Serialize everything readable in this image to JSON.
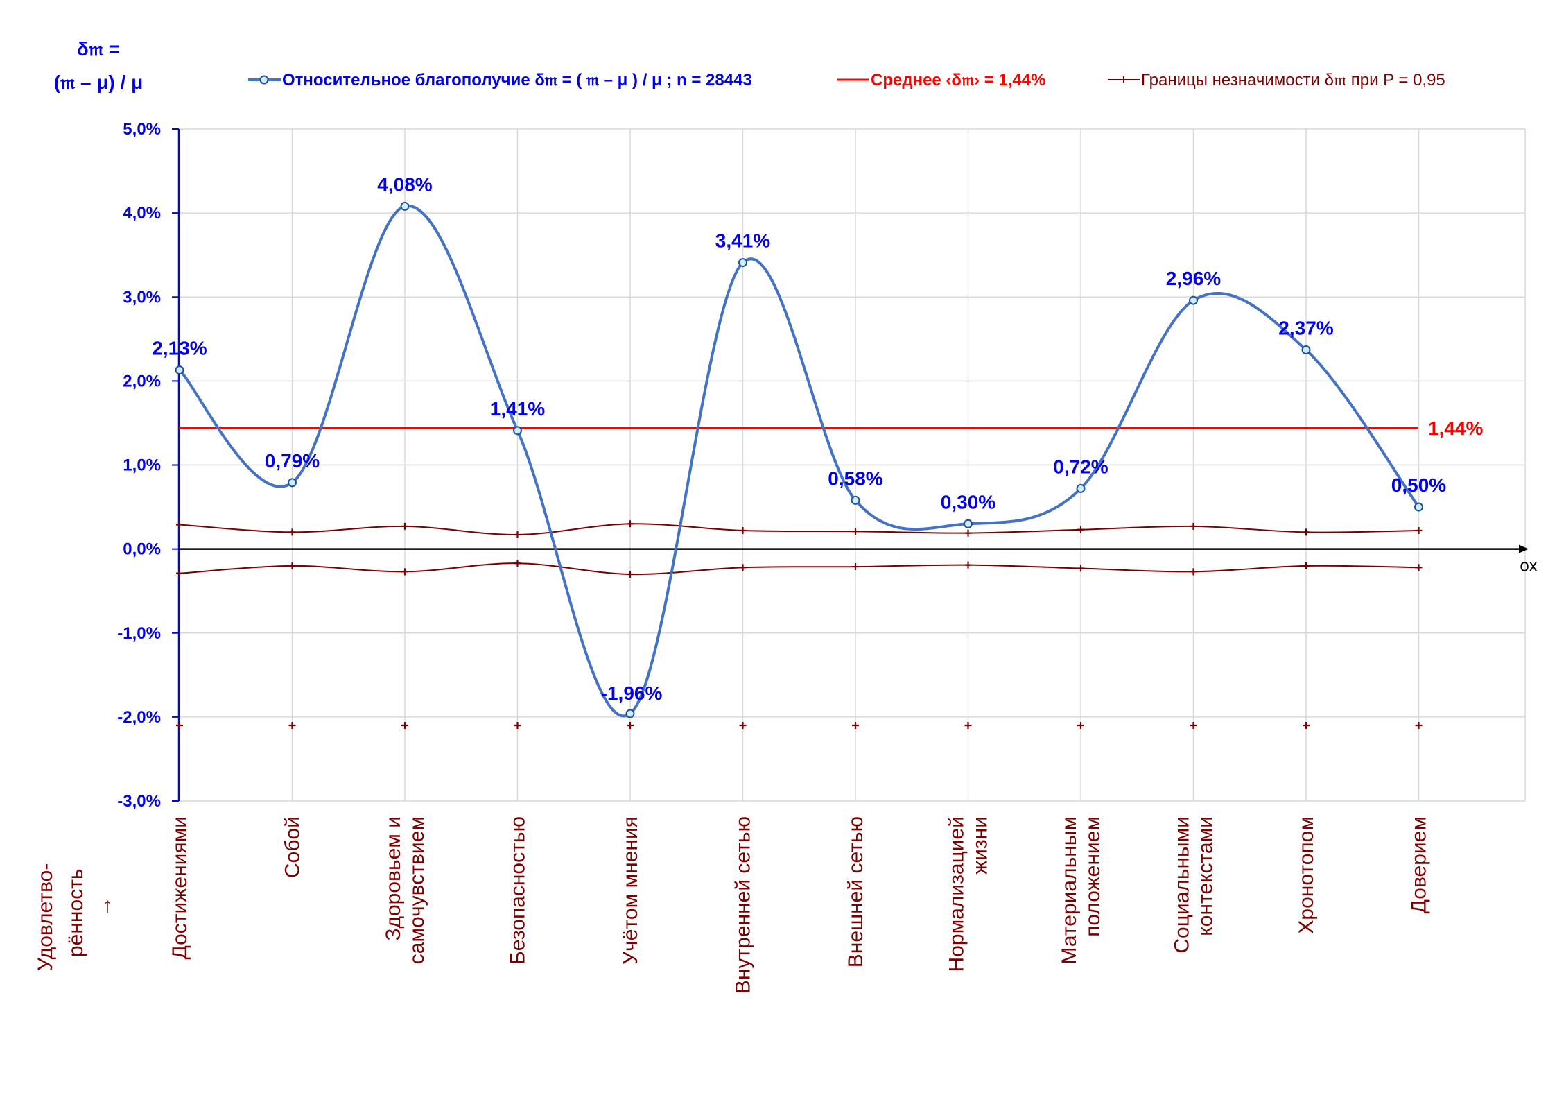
{
  "chart_data": {
    "type": "line",
    "y_label_lines": [
      "δ𝔪 =",
      "(𝔪 – μ) / μ"
    ],
    "x_axis_label": "ox",
    "x_side_label_lines": [
      "Удовлетво-",
      "рённость",
      "→"
    ],
    "ylim": [
      -0.03,
      0.05
    ],
    "yticks": [
      "-3,0%",
      "-2,0%",
      "-1,0%",
      "0,0%",
      "1,0%",
      "2,0%",
      "3,0%",
      "4,0%",
      "5,0%"
    ],
    "grid": true,
    "legend_position": "top",
    "categories": [
      [
        "Достижениями"
      ],
      [
        "Собой"
      ],
      [
        "Здоровьем и",
        "самочувствием"
      ],
      [
        "Безопасностью"
      ],
      [
        "Учётом мнения"
      ],
      [
        "Внутренней сетью"
      ],
      [
        "Внешней сетью"
      ],
      [
        "Нормализацией",
        "жизни"
      ],
      [
        "Материальным",
        "положением"
      ],
      [
        "Социальными",
        "контекстами"
      ],
      [
        "Хронотопом"
      ],
      [
        "Доверием"
      ]
    ],
    "series": [
      {
        "name": "Относительное благополучие δ𝔪 = ( 𝔪 – μ ) / μ ; n = 28443",
        "color": "#4472c4",
        "values": [
          0.0213,
          0.0079,
          0.0408,
          0.0141,
          -0.0196,
          0.0341,
          0.0058,
          0.003,
          0.0072,
          0.0296,
          0.0237,
          0.005
        ],
        "labels": [
          "2,13%",
          "0,79%",
          "4,08%",
          "1,41%",
          "-1,96%",
          "3,41%",
          "0,58%",
          "0,30%",
          "0,72%",
          "2,96%",
          "2,37%",
          "0,50%"
        ]
      },
      {
        "name": "Среднее ‹δ𝔪› = 1,44%",
        "color": "#ff0000",
        "value": 0.0144,
        "label": "1,44%"
      },
      {
        "name": "Границы незначимости δ𝔪 при P = 0,95",
        "color": "#7b0000",
        "upper": [
          0.0029,
          0.002,
          0.0027,
          0.0017,
          0.003,
          0.0022,
          0.0021,
          0.0019,
          0.0023,
          0.0027,
          0.002,
          0.0022
        ],
        "lower": [
          -0.0029,
          -0.002,
          -0.0027,
          -0.0017,
          -0.003,
          -0.0022,
          -0.0021,
          -0.0019,
          -0.0023,
          -0.0027,
          -0.002,
          -0.0022
        ],
        "floor_markers": -0.021
      }
    ]
  }
}
